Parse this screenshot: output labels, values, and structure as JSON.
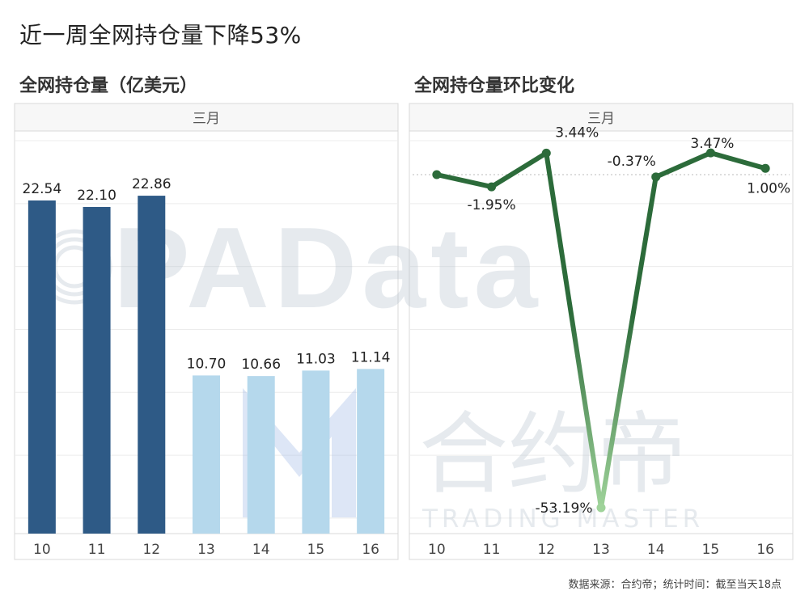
{
  "title": "近一周全网持仓量下降53%",
  "footnote": "数据来源：合约帝；统计时间：截至当天18点",
  "watermark": {
    "brand": "PAData",
    "cn": "合约帝",
    "en": "TRADING MASTER"
  },
  "colors": {
    "bar_dark": "#2e5a86",
    "bar_light": "#b5d8ec",
    "line_dark": "#2c6b3a",
    "line_light": "#9fd39a",
    "grid": "#ececec",
    "panel_border": "#d8d8d8",
    "header_bg": "#f7f7f7"
  },
  "chart_data": [
    {
      "type": "bar",
      "title": "全网持仓量（亿美元）",
      "header": "三月",
      "categories": [
        "10",
        "11",
        "12",
        "13",
        "14",
        "15",
        "16"
      ],
      "values": [
        22.54,
        22.1,
        22.86,
        10.7,
        10.66,
        11.03,
        11.14
      ],
      "value_labels": [
        "22.54",
        "22.10",
        "22.86",
        "10.70",
        "10.66",
        "11.03",
        "11.14"
      ],
      "ylim": [
        0,
        25
      ],
      "grid": true,
      "highlight_first_n": 3
    },
    {
      "type": "line",
      "title": "全网持仓量环比变化",
      "header": "三月",
      "categories": [
        "10",
        "11",
        "12",
        "13",
        "14",
        "15",
        "16"
      ],
      "values": [
        null,
        -1.95,
        3.44,
        -53.19,
        -0.37,
        3.47,
        1.0
      ],
      "plotted": [
        0,
        -1.95,
        3.44,
        -53.19,
        -0.37,
        3.47,
        1.0
      ],
      "value_labels": [
        "",
        "-1.95%",
        "3.44%",
        "-53.19%",
        "-0.37%",
        "3.47%",
        "1.00%"
      ],
      "ylim": [
        -56,
        10
      ],
      "grid": true,
      "zero_line": "dashed"
    }
  ]
}
